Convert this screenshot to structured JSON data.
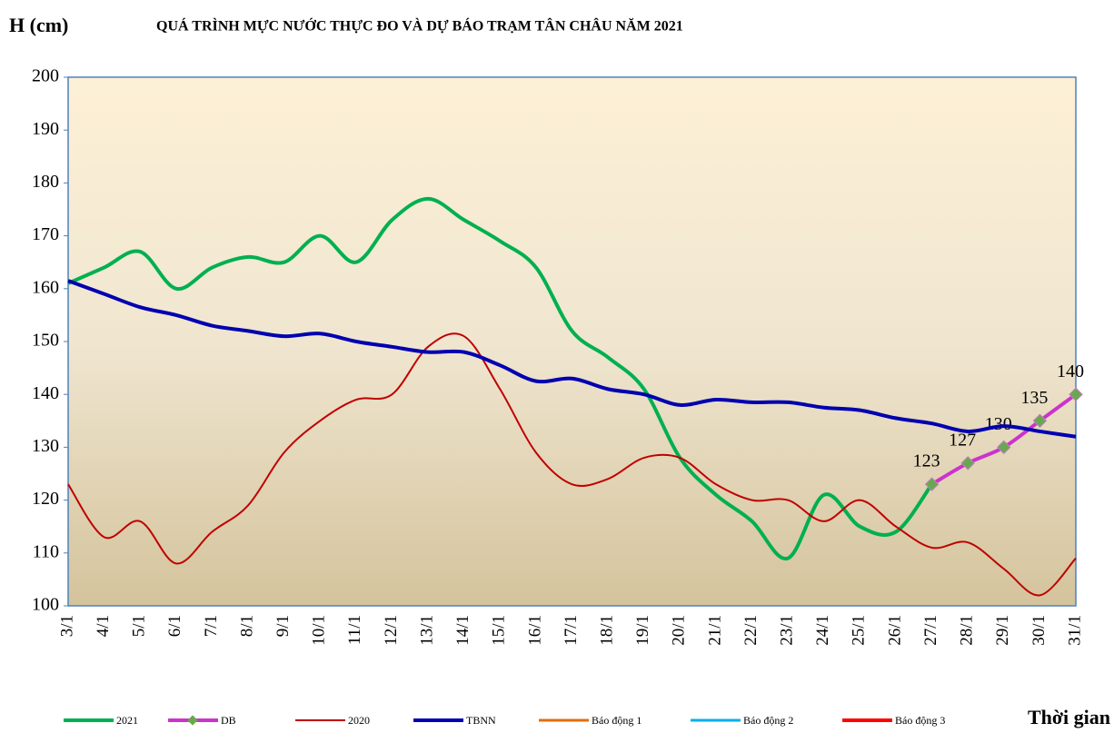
{
  "chart_data": {
    "type": "line",
    "title": "QUÁ TRÌNH MỰC NƯỚC THỰC ĐO VÀ DỰ BÁO TRẠM TÂN CHÂU NĂM 2021",
    "y_label": "H (cm)",
    "x_label": "Thời gian",
    "categories": [
      "3/1",
      "4/1",
      "5/1",
      "6/1",
      "7/1",
      "8/1",
      "9/1",
      "10/1",
      "11/1",
      "12/1",
      "13/1",
      "14/1",
      "15/1",
      "16/1",
      "17/1",
      "18/1",
      "19/1",
      "20/1",
      "21/1",
      "22/1",
      "23/1",
      "24/1",
      "25/1",
      "26/1",
      "27/1",
      "28/1",
      "29/1",
      "30/1",
      "31/1"
    ],
    "ylim": [
      100,
      200
    ],
    "yticks": [
      100,
      110,
      120,
      130,
      140,
      150,
      160,
      170,
      180,
      190,
      200
    ],
    "grid": false,
    "legend": "bottom",
    "series": [
      {
        "name": "2021",
        "color": "#00b050",
        "width": 4,
        "values": [
          161,
          164,
          167,
          160,
          164,
          166,
          165,
          170,
          165,
          173,
          177,
          173,
          169,
          164,
          152,
          147,
          141,
          128,
          121,
          116,
          109,
          121,
          115,
          114,
          123,
          null,
          null,
          null,
          null
        ]
      },
      {
        "name": "DB",
        "color": "#cc33cc",
        "width": 4,
        "markers": true,
        "data_labels": true,
        "values": [
          null,
          null,
          null,
          null,
          null,
          null,
          null,
          null,
          null,
          null,
          null,
          null,
          null,
          null,
          null,
          null,
          null,
          null,
          null,
          null,
          null,
          null,
          null,
          null,
          123,
          127,
          130,
          135,
          140
        ]
      },
      {
        "name": "2020",
        "color": "#c00000",
        "width": 2,
        "values": [
          123,
          113,
          116,
          108,
          114,
          119,
          129,
          135,
          139,
          140,
          149,
          151,
          141,
          129,
          123,
          124,
          128,
          128,
          123,
          120,
          120,
          116,
          120,
          115,
          111,
          112,
          107,
          102,
          109
        ]
      },
      {
        "name": "TBNN",
        "color": "#0000b0",
        "width": 4,
        "values": [
          161.5,
          159,
          156.5,
          155,
          153,
          152,
          151,
          151.5,
          150,
          149,
          148,
          148,
          145.5,
          142.5,
          143,
          141,
          140,
          138,
          139,
          138.5,
          138.5,
          137.5,
          137,
          135.5,
          134.5,
          133,
          134,
          133,
          132
        ]
      },
      {
        "name": "Báo động 1",
        "color": "#e46c0a",
        "width": 3,
        "values": [
          null,
          null,
          null,
          null,
          null,
          null,
          null,
          null,
          null,
          null,
          null,
          null,
          null,
          null,
          null,
          null,
          null,
          null,
          null,
          null,
          null,
          null,
          null,
          null,
          null,
          null,
          null,
          null,
          null
        ]
      },
      {
        "name": "Báo động 2",
        "color": "#00b0f0",
        "width": 3,
        "values": [
          null,
          null,
          null,
          null,
          null,
          null,
          null,
          null,
          null,
          null,
          null,
          null,
          null,
          null,
          null,
          null,
          null,
          null,
          null,
          null,
          null,
          null,
          null,
          null,
          null,
          null,
          null,
          null,
          null
        ]
      },
      {
        "name": "Báo động 3",
        "color": "#ff0000",
        "width": 4,
        "values": [
          null,
          null,
          null,
          null,
          null,
          null,
          null,
          null,
          null,
          null,
          null,
          null,
          null,
          null,
          null,
          null,
          null,
          null,
          null,
          null,
          null,
          null,
          null,
          null,
          null,
          null,
          null,
          null,
          null
        ]
      }
    ]
  }
}
